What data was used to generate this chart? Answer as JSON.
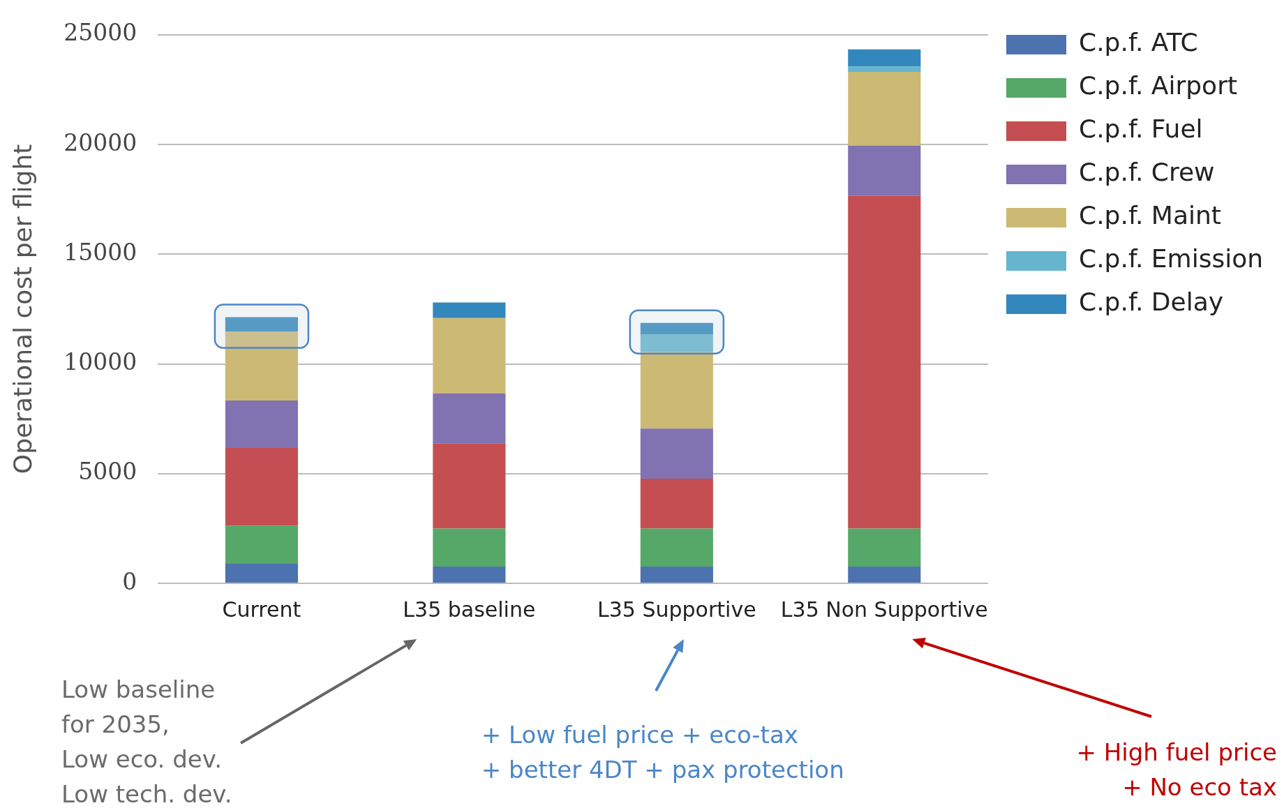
{
  "chart_data": {
    "type": "bar",
    "stacked": true,
    "ylabel": "Operational cost per flight",
    "categories": [
      "Current",
      "L35 baseline",
      "L35 Supportive",
      "L35 Non Supportive"
    ],
    "series": [
      {
        "name": "C.p.f. ATC",
        "color": "#4c72b0",
        "values": [
          890,
          760,
          760,
          760
        ]
      },
      {
        "name": "C.p.f. Airport",
        "color": "#55a868",
        "values": [
          1740,
          1740,
          1740,
          1740
        ]
      },
      {
        "name": "C.p.f. Fuel",
        "color": "#c44e52",
        "values": [
          3540,
          3870,
          2270,
          15160
        ]
      },
      {
        "name": "C.p.f. Crew",
        "color": "#8172b2",
        "values": [
          2160,
          2290,
          2280,
          2290
        ]
      },
      {
        "name": "C.p.f. Maint",
        "color": "#ccb974",
        "values": [
          3130,
          3430,
          3490,
          3360
        ]
      },
      {
        "name": "C.p.f. Emission",
        "color": "#64b5cd",
        "values": [
          0,
          0,
          810,
          240
        ]
      },
      {
        "name": "C.p.f. Delay",
        "color": "#3288bd",
        "values": [
          670,
          710,
          520,
          780
        ]
      }
    ],
    "ylim": [
      0,
      25000
    ],
    "yticks": [
      0,
      5000,
      10000,
      15000,
      20000,
      25000
    ],
    "grid": "y",
    "legend": "top right",
    "annotations": [
      "Low baseline\nfor 2035,\nLow eco. dev.\nLow tech. dev.",
      "+ Low fuel price + eco-tax\n+ better 4DT + pax protection",
      "+ High fuel price\n+ No eco tax"
    ]
  }
}
